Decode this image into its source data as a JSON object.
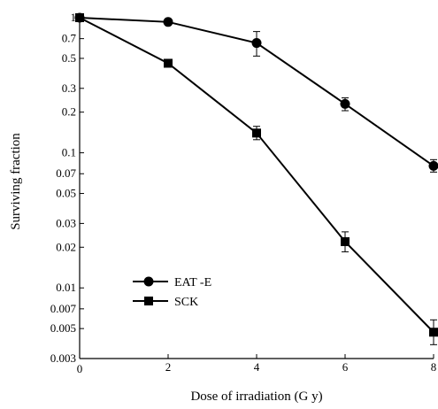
{
  "chart_data": {
    "type": "line",
    "title": "",
    "xlabel": "Dose of irradiation (G y)",
    "ylabel": "Surviving fraction",
    "x_ticks": [
      0,
      2,
      4,
      6,
      8
    ],
    "y_ticks": [
      {
        "value": 0.003,
        "label": "0.003"
      },
      {
        "value": 0.005,
        "label": "0.005"
      },
      {
        "value": 0.007,
        "label": "0.007"
      },
      {
        "value": 0.01,
        "label": "0.01"
      },
      {
        "value": 0.02,
        "label": "0.02"
      },
      {
        "value": 0.03,
        "label": "0.03"
      },
      {
        "value": 0.05,
        "label": "0.05"
      },
      {
        "value": 0.07,
        "label": "0.07"
      },
      {
        "value": 0.1,
        "label": "0.1"
      },
      {
        "value": 0.2,
        "label": "0.2"
      },
      {
        "value": 0.3,
        "label": "0.3"
      },
      {
        "value": 0.5,
        "label": "0.5"
      },
      {
        "value": 0.7,
        "label": "0.7"
      },
      {
        "value": 1,
        "label": "1"
      }
    ],
    "xlim": [
      0,
      8
    ],
    "ylim": [
      0.003,
      1
    ],
    "y_scale": "log",
    "grid": false,
    "legend_position": "bottom-left",
    "series": [
      {
        "name": "EAT -E",
        "marker": "circle",
        "color": "#000000",
        "x": [
          0,
          2,
          4,
          6,
          8
        ],
        "y": [
          1.0,
          0.93,
          0.65,
          0.23,
          0.08
        ],
        "err_low": [
          0,
          0,
          0.13,
          0.025,
          0.008
        ],
        "err_high": [
          0,
          0,
          0.14,
          0.025,
          0.009
        ]
      },
      {
        "name": "SCK",
        "marker": "square",
        "color": "#000000",
        "x": [
          0,
          2,
          4,
          6,
          8
        ],
        "y": [
          1.0,
          0.46,
          0.14,
          0.022,
          0.0047
        ],
        "err_low": [
          0,
          0,
          0.015,
          0.0035,
          0.0009
        ],
        "err_high": [
          0,
          0,
          0.017,
          0.004,
          0.0011
        ]
      }
    ]
  }
}
